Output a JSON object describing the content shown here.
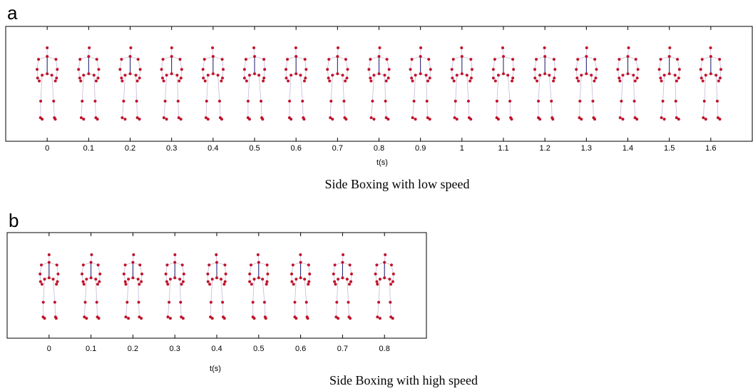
{
  "chart_data": [
    {
      "type": "skeleton",
      "label": "a",
      "title": "Side Boxing with low speed",
      "xlabel": "t(s)",
      "xlim": [
        -0.1,
        1.7
      ],
      "xticks": [
        0,
        0.1,
        0.2,
        0.3,
        0.4,
        0.5,
        0.6,
        0.7,
        0.8,
        0.9,
        1,
        1.1,
        1.2,
        1.3,
        1.4,
        1.5,
        1.6
      ]
    },
    {
      "type": "skeleton",
      "label": "b",
      "title": "Side Boxing with high speed",
      "xlabel": "t(s)",
      "xlim": [
        -0.1,
        0.9
      ],
      "xticks": [
        0,
        0.1,
        0.2,
        0.3,
        0.4,
        0.5,
        0.6,
        0.7,
        0.8
      ]
    }
  ]
}
